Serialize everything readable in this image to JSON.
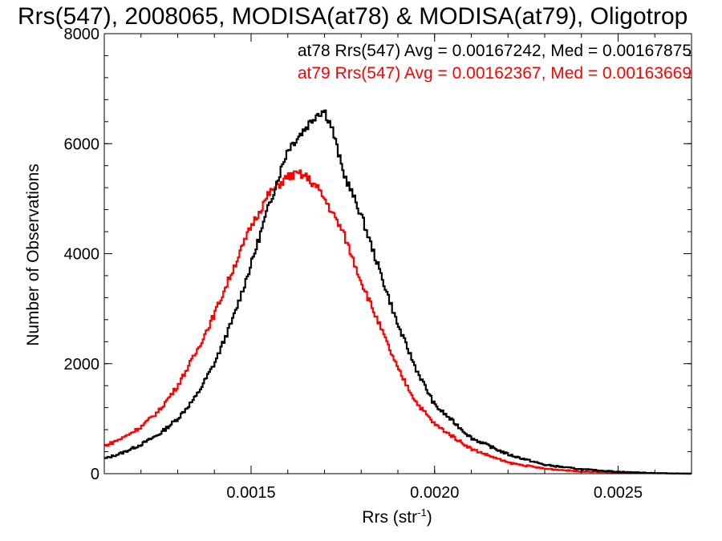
{
  "chart_data": {
    "type": "line",
    "title": "Rrs(547), 2008065, MODISA(at78) & MODISA(at79), Oligotrop",
    "xlabel": "Rrs (str",
    "xlabel_sup": "-1",
    "xlabel_close": ")",
    "ylabel": "Number of Observations",
    "xlim": [
      0.0011,
      0.0027
    ],
    "ylim": [
      0,
      8000
    ],
    "xticks": [
      0.0015,
      0.002,
      0.0025
    ],
    "xtick_labels": [
      "0.0015",
      "0.0020",
      "0.0025"
    ],
    "yticks": [
      0,
      2000,
      4000,
      6000,
      8000
    ],
    "ytick_labels": [
      "0",
      "2000",
      "4000",
      "6000",
      "8000"
    ],
    "legend_position": "top-right",
    "series": [
      {
        "name": "at78",
        "color": "#000000",
        "legend_text": "at78 Rrs(547) Avg = 0.00167242, Med = 0.00167875",
        "x": [
          0.0011,
          0.00115,
          0.0012,
          0.00125,
          0.0013,
          0.00135,
          0.0014,
          0.00145,
          0.0015,
          0.00155,
          0.0016,
          0.00165,
          0.00168,
          0.0017,
          0.00172,
          0.00175,
          0.0018,
          0.00185,
          0.0019,
          0.00195,
          0.002,
          0.0021,
          0.0022,
          0.0023,
          0.0024,
          0.0025,
          0.0026,
          0.0027
        ],
        "y": [
          270,
          380,
          530,
          720,
          1000,
          1400,
          2000,
          2800,
          3800,
          4900,
          5900,
          6300,
          6550,
          6600,
          6300,
          5500,
          4700,
          3700,
          2700,
          1900,
          1250,
          650,
          350,
          160,
          80,
          35,
          10,
          0
        ]
      },
      {
        "name": "at79",
        "color": "#ff0000",
        "legend_text": "at79 Rrs(547) Avg = 0.00162367, Med = 0.00163669",
        "x": [
          0.0011,
          0.00115,
          0.0012,
          0.00125,
          0.0013,
          0.00135,
          0.0014,
          0.00145,
          0.0015,
          0.00155,
          0.0016,
          0.00163,
          0.00165,
          0.00168,
          0.0017,
          0.00175,
          0.0018,
          0.00185,
          0.0019,
          0.00195,
          0.002,
          0.0021,
          0.0022,
          0.0023,
          0.0024,
          0.0025,
          0.0026,
          0.0027
        ],
        "y": [
          500,
          650,
          850,
          1150,
          1600,
          2200,
          2900,
          3700,
          4500,
          5100,
          5400,
          5450,
          5400,
          5200,
          5000,
          4400,
          3500,
          2700,
          1900,
          1300,
          900,
          450,
          200,
          90,
          40,
          20,
          8,
          0
        ]
      }
    ]
  }
}
